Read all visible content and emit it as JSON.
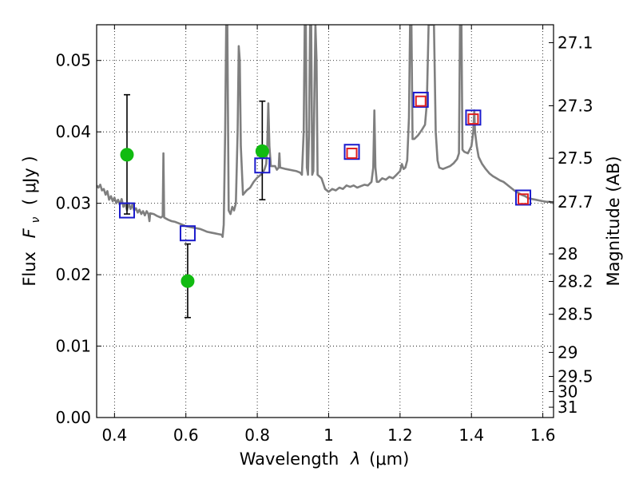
{
  "chart_data": {
    "type": "scatter",
    "xlabel": "Wavelength",
    "xlabel_symbol": "λ",
    "xlabel_unit": "(μm)",
    "ylabel": "Flux",
    "ylabel_symbol": "F",
    "ylabel_subscript": "ν",
    "ylabel_unit": "( μJy )",
    "ylabel_right": "Magnitude (AB)",
    "xlim": [
      0.35,
      1.63
    ],
    "ylim": [
      0.0,
      0.055
    ],
    "grid": true,
    "x_ticks": [
      {
        "value": 0.4,
        "label": "0.4"
      },
      {
        "value": 0.6,
        "label": "0.6"
      },
      {
        "value": 0.8,
        "label": "0.8"
      },
      {
        "value": 1.0,
        "label": "1"
      },
      {
        "value": 1.2,
        "label": "1.2"
      },
      {
        "value": 1.4,
        "label": "1.4"
      },
      {
        "value": 1.6,
        "label": "1.6"
      }
    ],
    "y_ticks": [
      {
        "value": 0.0,
        "label": "0.00"
      },
      {
        "value": 0.01,
        "label": "0.01"
      },
      {
        "value": 0.02,
        "label": "0.02"
      },
      {
        "value": 0.03,
        "label": "0.03"
      },
      {
        "value": 0.04,
        "label": "0.04"
      },
      {
        "value": 0.05,
        "label": "0.05"
      }
    ],
    "y2_ticks": [
      {
        "mag": 27.1,
        "label": "27.1"
      },
      {
        "mag": 27.3,
        "label": "27.3"
      },
      {
        "mag": 27.5,
        "label": "27.5"
      },
      {
        "mag": 27.7,
        "label": "27.7"
      },
      {
        "mag": 28.0,
        "label": "28"
      },
      {
        "mag": 28.2,
        "label": "28.2"
      },
      {
        "mag": 28.5,
        "label": "28.5"
      },
      {
        "mag": 29.0,
        "label": "29"
      },
      {
        "mag": 29.5,
        "label": "29.5"
      },
      {
        "mag": 30.0,
        "label": "30"
      },
      {
        "mag": 31.0,
        "label": "31"
      }
    ],
    "series": [
      {
        "name": "model spectrum",
        "kind": "line",
        "color": "#7f7f7f",
        "points": [
          [
            0.35,
            0.0325
          ],
          [
            0.355,
            0.0322
          ],
          [
            0.36,
            0.0326
          ],
          [
            0.365,
            0.0318
          ],
          [
            0.37,
            0.032
          ],
          [
            0.375,
            0.0312
          ],
          [
            0.38,
            0.0317
          ],
          [
            0.385,
            0.0305
          ],
          [
            0.39,
            0.031
          ],
          [
            0.395,
            0.0303
          ],
          [
            0.4,
            0.0308
          ],
          [
            0.405,
            0.03
          ],
          [
            0.41,
            0.0305
          ],
          [
            0.415,
            0.0298
          ],
          [
            0.42,
            0.0306
          ],
          [
            0.425,
            0.0295
          ],
          [
            0.43,
            0.03
          ],
          [
            0.435,
            0.029
          ],
          [
            0.44,
            0.03
          ],
          [
            0.445,
            0.0292
          ],
          [
            0.45,
            0.0298
          ],
          [
            0.455,
            0.029
          ],
          [
            0.46,
            0.0293
          ],
          [
            0.465,
            0.0287
          ],
          [
            0.47,
            0.0291
          ],
          [
            0.475,
            0.0285
          ],
          [
            0.48,
            0.0289
          ],
          [
            0.485,
            0.0283
          ],
          [
            0.49,
            0.0289
          ],
          [
            0.495,
            0.0285
          ],
          [
            0.498,
            0.0275
          ],
          [
            0.5,
            0.0286
          ],
          [
            0.51,
            0.0285
          ],
          [
            0.52,
            0.0282
          ],
          [
            0.53,
            0.028
          ],
          [
            0.535,
            0.0282
          ],
          [
            0.537,
            0.037
          ],
          [
            0.539,
            0.028
          ],
          [
            0.55,
            0.0277
          ],
          [
            0.56,
            0.0275
          ],
          [
            0.57,
            0.0274
          ],
          [
            0.58,
            0.0272
          ],
          [
            0.59,
            0.027
          ],
          [
            0.6,
            0.0268
          ],
          [
            0.61,
            0.0267
          ],
          [
            0.62,
            0.0266
          ],
          [
            0.63,
            0.0265
          ],
          [
            0.64,
            0.0264
          ],
          [
            0.65,
            0.0262
          ],
          [
            0.66,
            0.026
          ],
          [
            0.67,
            0.0259
          ],
          [
            0.68,
            0.0258
          ],
          [
            0.69,
            0.0257
          ],
          [
            0.7,
            0.0256
          ],
          [
            0.703,
            0.0253
          ],
          [
            0.706,
            0.027
          ],
          [
            0.71,
            0.04
          ],
          [
            0.713,
            0.055
          ],
          [
            0.716,
            0.055
          ],
          [
            0.72,
            0.029
          ],
          [
            0.725,
            0.0285
          ],
          [
            0.73,
            0.0295
          ],
          [
            0.735,
            0.029
          ],
          [
            0.74,
            0.03
          ],
          [
            0.745,
            0.04
          ],
          [
            0.748,
            0.052
          ],
          [
            0.751,
            0.05
          ],
          [
            0.754,
            0.038
          ],
          [
            0.76,
            0.0312
          ],
          [
            0.77,
            0.0318
          ],
          [
            0.78,
            0.0322
          ],
          [
            0.79,
            0.033
          ],
          [
            0.8,
            0.0336
          ],
          [
            0.81,
            0.034
          ],
          [
            0.815,
            0.0343
          ],
          [
            0.82,
            0.0347
          ],
          [
            0.825,
            0.0355
          ],
          [
            0.828,
            0.038
          ],
          [
            0.831,
            0.044
          ],
          [
            0.834,
            0.038
          ],
          [
            0.838,
            0.0352
          ],
          [
            0.85,
            0.0352
          ],
          [
            0.855,
            0.0347
          ],
          [
            0.86,
            0.035
          ],
          [
            0.862,
            0.037
          ],
          [
            0.864,
            0.035
          ],
          [
            0.88,
            0.0348
          ],
          [
            0.9,
            0.0346
          ],
          [
            0.91,
            0.0345
          ],
          [
            0.92,
            0.0343
          ],
          [
            0.925,
            0.034
          ],
          [
            0.93,
            0.04
          ],
          [
            0.933,
            0.055
          ],
          [
            0.936,
            0.055
          ],
          [
            0.939,
            0.035
          ],
          [
            0.942,
            0.034
          ],
          [
            0.945,
            0.04
          ],
          [
            0.948,
            0.055
          ],
          [
            0.951,
            0.055
          ],
          [
            0.954,
            0.034
          ],
          [
            0.957,
            0.0345
          ],
          [
            0.96,
            0.045
          ],
          [
            0.963,
            0.055
          ],
          [
            0.966,
            0.05
          ],
          [
            0.969,
            0.034
          ],
          [
            0.98,
            0.0335
          ],
          [
            0.99,
            0.032
          ],
          [
            1.0,
            0.0316
          ],
          [
            1.01,
            0.032
          ],
          [
            1.02,
            0.0318
          ],
          [
            1.03,
            0.0322
          ],
          [
            1.04,
            0.032
          ],
          [
            1.05,
            0.0325
          ],
          [
            1.06,
            0.0323
          ],
          [
            1.07,
            0.0325
          ],
          [
            1.08,
            0.0322
          ],
          [
            1.09,
            0.0324
          ],
          [
            1.1,
            0.0326
          ],
          [
            1.11,
            0.0325
          ],
          [
            1.12,
            0.033
          ],
          [
            1.125,
            0.035
          ],
          [
            1.128,
            0.043
          ],
          [
            1.131,
            0.035
          ],
          [
            1.135,
            0.033
          ],
          [
            1.14,
            0.033
          ],
          [
            1.15,
            0.0335
          ],
          [
            1.16,
            0.0333
          ],
          [
            1.17,
            0.0337
          ],
          [
            1.18,
            0.0335
          ],
          [
            1.19,
            0.034
          ],
          [
            1.2,
            0.0345
          ],
          [
            1.205,
            0.0355
          ],
          [
            1.21,
            0.0348
          ],
          [
            1.215,
            0.035
          ],
          [
            1.22,
            0.036
          ],
          [
            1.225,
            0.042
          ],
          [
            1.228,
            0.055
          ],
          [
            1.232,
            0.055
          ],
          [
            1.235,
            0.039
          ],
          [
            1.24,
            0.039
          ],
          [
            1.25,
            0.0395
          ],
          [
            1.26,
            0.0402
          ],
          [
            1.27,
            0.041
          ],
          [
            1.275,
            0.044
          ],
          [
            1.28,
            0.055
          ],
          [
            1.29,
            0.055
          ],
          [
            1.295,
            0.055
          ],
          [
            1.3,
            0.04
          ],
          [
            1.305,
            0.036
          ],
          [
            1.31,
            0.035
          ],
          [
            1.32,
            0.0348
          ],
          [
            1.33,
            0.035
          ],
          [
            1.34,
            0.0352
          ],
          [
            1.35,
            0.0356
          ],
          [
            1.36,
            0.0362
          ],
          [
            1.365,
            0.037
          ],
          [
            1.368,
            0.055
          ],
          [
            1.372,
            0.055
          ],
          [
            1.375,
            0.0375
          ],
          [
            1.38,
            0.0372
          ],
          [
            1.39,
            0.037
          ],
          [
            1.4,
            0.038
          ],
          [
            1.405,
            0.04
          ],
          [
            1.408,
            0.043
          ],
          [
            1.41,
            0.04
          ],
          [
            1.415,
            0.038
          ],
          [
            1.42,
            0.0365
          ],
          [
            1.43,
            0.0355
          ],
          [
            1.44,
            0.0348
          ],
          [
            1.45,
            0.0342
          ],
          [
            1.46,
            0.0338
          ],
          [
            1.47,
            0.0335
          ],
          [
            1.48,
            0.0332
          ],
          [
            1.49,
            0.033
          ],
          [
            1.5,
            0.0326
          ],
          [
            1.51,
            0.0322
          ],
          [
            1.52,
            0.0318
          ],
          [
            1.53,
            0.0315
          ],
          [
            1.54,
            0.0312
          ],
          [
            1.55,
            0.031
          ],
          [
            1.56,
            0.0307
          ],
          [
            1.57,
            0.0306
          ],
          [
            1.58,
            0.0305
          ],
          [
            1.59,
            0.0304
          ],
          [
            1.6,
            0.0303
          ],
          [
            1.61,
            0.0302
          ],
          [
            1.62,
            0.0302
          ],
          [
            1.63,
            0.03
          ]
        ]
      },
      {
        "name": "observed photometry",
        "kind": "points_with_error",
        "marker": "filled-circle",
        "color": "#11bb11",
        "errorbar_color": "#000000",
        "points": [
          {
            "x": 0.435,
            "y": 0.0368,
            "y_low": 0.0285,
            "y_high": 0.0452
          },
          {
            "x": 0.605,
            "y": 0.0191,
            "y_low": 0.014,
            "y_high": 0.0243
          },
          {
            "x": 0.814,
            "y": 0.0373,
            "y_low": 0.0305,
            "y_high": 0.0443
          }
        ]
      },
      {
        "name": "model photometry (blue)",
        "kind": "points",
        "marker": "open-square",
        "color": "#1a1acc",
        "points": [
          {
            "x": 0.435,
            "y": 0.029
          },
          {
            "x": 0.605,
            "y": 0.0258
          },
          {
            "x": 0.814,
            "y": 0.0353
          },
          {
            "x": 1.065,
            "y": 0.0372
          },
          {
            "x": 1.258,
            "y": 0.0445
          },
          {
            "x": 1.405,
            "y": 0.042
          },
          {
            "x": 1.545,
            "y": 0.0308
          }
        ]
      },
      {
        "name": "model photometry (red)",
        "kind": "points",
        "marker": "open-square",
        "color": "#e02020",
        "points": [
          {
            "x": 1.065,
            "y": 0.037
          },
          {
            "x": 1.258,
            "y": 0.0443
          },
          {
            "x": 1.405,
            "y": 0.0418
          },
          {
            "x": 1.545,
            "y": 0.0306
          }
        ]
      }
    ]
  }
}
